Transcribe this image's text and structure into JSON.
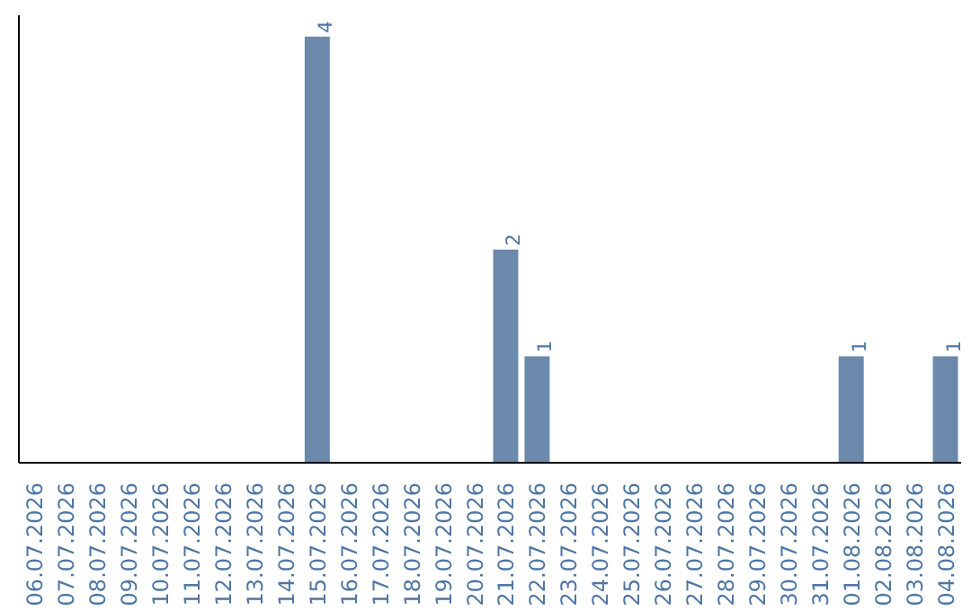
{
  "chart_data": {
    "type": "bar",
    "categories": [
      "06.07.2026",
      "07.07.2026",
      "08.07.2026",
      "09.07.2026",
      "10.07.2026",
      "11.07.2026",
      "12.07.2026",
      "13.07.2026",
      "14.07.2026",
      "15.07.2026",
      "16.07.2026",
      "17.07.2026",
      "18.07.2026",
      "19.07.2026",
      "20.07.2026",
      "21.07.2026",
      "22.07.2026",
      "23.07.2026",
      "24.07.2026",
      "25.07.2026",
      "26.07.2026",
      "27.07.2026",
      "28.07.2026",
      "29.07.2026",
      "30.07.2026",
      "31.07.2026",
      "01.08.2026",
      "02.08.2026",
      "03.08.2026",
      "04.08.2026"
    ],
    "values": [
      0,
      0,
      0,
      0,
      0,
      0,
      0,
      0,
      0,
      4,
      0,
      0,
      0,
      0,
      0,
      2,
      1,
      0,
      0,
      0,
      0,
      0,
      0,
      0,
      0,
      0,
      1,
      0,
      0,
      1
    ],
    "value_labels": [
      null,
      null,
      null,
      null,
      null,
      null,
      null,
      null,
      null,
      "4",
      null,
      null,
      null,
      null,
      null,
      "2",
      "1",
      null,
      null,
      null,
      null,
      null,
      null,
      null,
      null,
      null,
      "1",
      null,
      null,
      "1"
    ],
    "color": "#6b8aab",
    "grid": false,
    "tick_labels": "x"
  }
}
